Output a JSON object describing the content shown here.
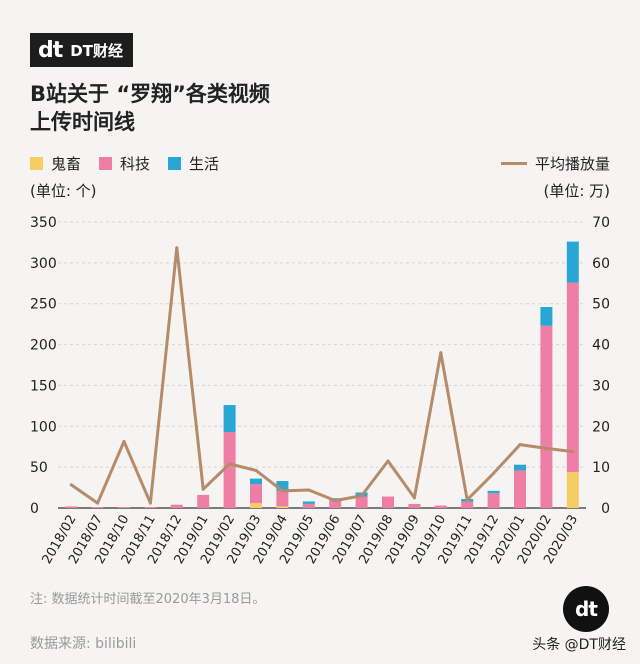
{
  "brand": {
    "mark": "dt",
    "name": "DT财经"
  },
  "title_line1": "B站关于 “罗翔”各类视频",
  "title_line2": "上传时间线",
  "legend": [
    {
      "label": "鬼畜",
      "color": "#f5cd63"
    },
    {
      "label": "科技",
      "color": "#ef7ea6"
    },
    {
      "label": "生活",
      "color": "#2aa6d5"
    }
  ],
  "unit_left": "(单位: 个)",
  "legend_right": {
    "label": "平均播放量",
    "color": "#b58b6a"
  },
  "unit_right": "(单位: 万)",
  "chart_data": {
    "type": "bar",
    "categories": [
      "2018/02",
      "2018/07",
      "2018/10",
      "2018/11",
      "2018/12",
      "2019/01",
      "2019/02",
      "2019/03",
      "2019/04",
      "2019/05",
      "2019/06",
      "2019/07",
      "2019/08",
      "2019/09",
      "2019/10",
      "2019/11",
      "2019/12",
      "2020/01",
      "2020/02",
      "2020/03"
    ],
    "series": [
      {
        "name": "鬼畜",
        "color": "#f5cd63",
        "values": [
          0,
          0,
          0,
          0,
          0,
          0,
          0,
          6,
          2,
          0,
          0,
          0,
          0,
          0,
          0,
          0,
          0,
          0,
          0,
          44
        ]
      },
      {
        "name": "科技",
        "color": "#ef7ea6",
        "values": [
          2,
          1,
          1,
          1,
          4,
          16,
          93,
          23,
          19,
          5,
          9,
          14,
          14,
          5,
          3,
          8,
          18,
          46,
          223,
          232
        ]
      },
      {
        "name": "生活",
        "color": "#2aa6d5",
        "values": [
          0,
          0,
          0,
          0,
          0,
          0,
          33,
          7,
          12,
          3,
          3,
          5,
          0,
          0,
          0,
          3,
          3,
          7,
          23,
          50
        ]
      },
      {
        "name": "平均播放量",
        "color": "#b58b6a",
        "type": "line",
        "axis": "right",
        "values": [
          5.7,
          1.2,
          16.3,
          1.2,
          63.7,
          4.6,
          10.8,
          9.2,
          4.2,
          4.4,
          1.8,
          3.0,
          11.5,
          2.5,
          38.0,
          2.0,
          8.5,
          15.5,
          14.6,
          13.8
        ]
      }
    ],
    "ylim_left": [
      0,
      350
    ],
    "yticks_left": [
      0,
      50,
      100,
      150,
      200,
      250,
      300,
      350
    ],
    "ylim_right": [
      0,
      70
    ],
    "yticks_right": [
      0,
      10,
      20,
      30,
      40,
      50,
      60,
      70
    ]
  },
  "note": "注: 数据统计时间截至2020年3月18日。",
  "source": "数据来源: bilibili",
  "badge": "dt",
  "toutiao": "头条 @DT财经"
}
